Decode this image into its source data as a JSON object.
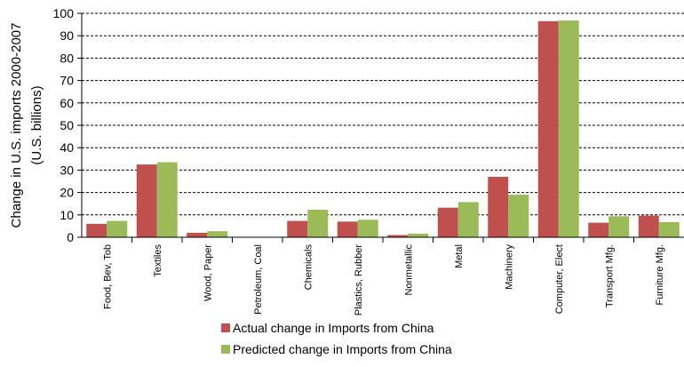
{
  "chart_data": {
    "type": "bar",
    "ylabel_lines": [
      "Change in U.S. imports 2000-2007",
      "(U.S. billions)"
    ],
    "ylim": [
      0,
      100
    ],
    "yticks": [
      0,
      10,
      20,
      30,
      40,
      50,
      60,
      70,
      80,
      90,
      100
    ],
    "grid": "horizontal-dashed",
    "legend_position": "bottom",
    "categories": [
      "Food, Bev, Tob",
      "Textiles",
      "Wood, Paper",
      "Petroleum, Coal",
      "Chemicals",
      "Plastics, Rubber",
      "Nonmetallic",
      "Metal",
      "Machinery",
      "Computer, Elect",
      "Transport Mfg.",
      "Furniture Mfg."
    ],
    "series": [
      {
        "name": "Actual change in Imports from China",
        "color": "#c0504d",
        "values": [
          6,
          32.5,
          2,
          0,
          7.3,
          7,
          1,
          13.2,
          27,
          96.5,
          6.5,
          9.7
        ]
      },
      {
        "name": "Predicted change in Imports from China",
        "color": "#9bbb59",
        "values": [
          7.3,
          33.5,
          2.7,
          0,
          12.3,
          7.8,
          1.6,
          15.7,
          19,
          96.8,
          9.4,
          6.8
        ]
      }
    ]
  }
}
